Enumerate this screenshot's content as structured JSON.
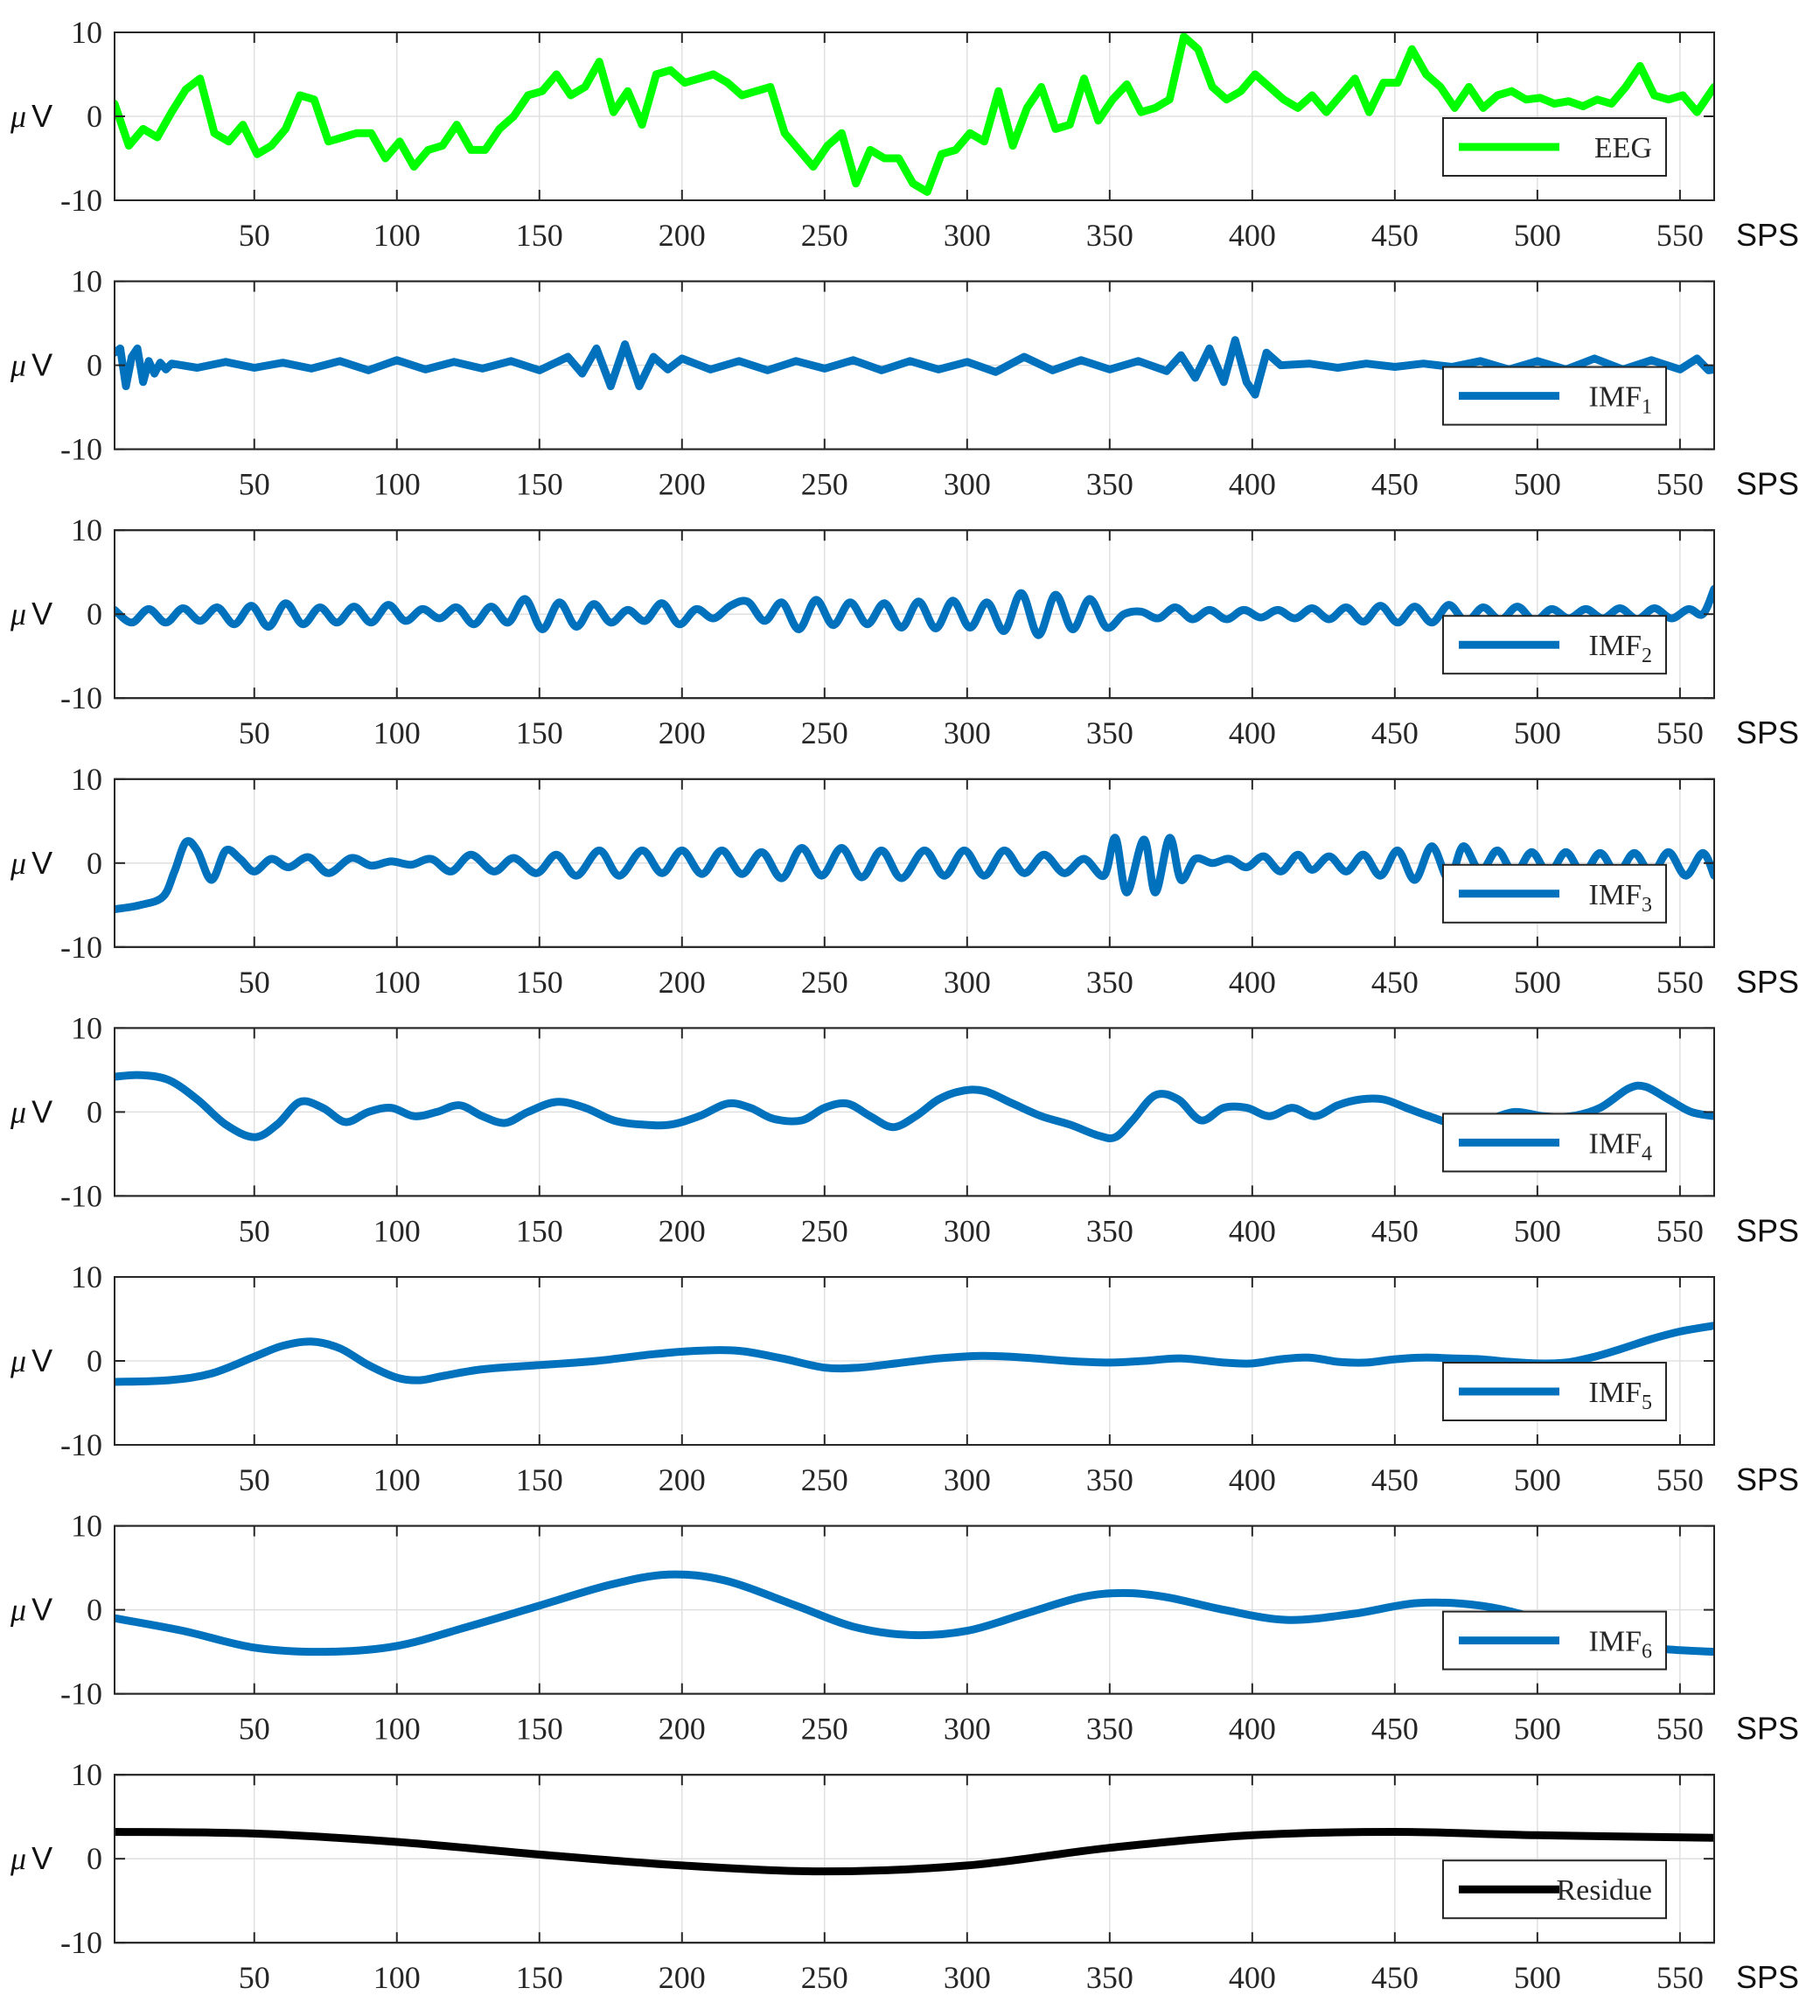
{
  "x_unit": "SPS",
  "y_unit_symbol": "μ",
  "y_unit_letter": "V",
  "x_ticks": [
    50,
    100,
    150,
    200,
    250,
    300,
    350,
    400,
    450,
    500,
    550
  ],
  "y_ticks": [
    10,
    0,
    -10
  ],
  "colors": {
    "eeg": "#00ff00",
    "imf": "#0072bd",
    "residue": "#000000"
  },
  "chart_data": [
    {
      "type": "line",
      "series_name": "EEG",
      "legend": "EEG",
      "subscript": "",
      "color": "#00ff00",
      "xlim": [
        1,
        562
      ],
      "ylim": [
        -10,
        10
      ],
      "xlabel": "SPS",
      "ylabel": "μV",
      "x": [
        1,
        6,
        11,
        16,
        21,
        26,
        31,
        36,
        41,
        46,
        51,
        56,
        61,
        66,
        71,
        76,
        81,
        86,
        91,
        96,
        101,
        106,
        111,
        116,
        121,
        126,
        131,
        136,
        141,
        146,
        151,
        156,
        161,
        166,
        171,
        176,
        181,
        186,
        191,
        196,
        201,
        206,
        211,
        216,
        221,
        226,
        231,
        236,
        241,
        246,
        251,
        256,
        261,
        266,
        271,
        276,
        281,
        286,
        291,
        296,
        301,
        306,
        311,
        316,
        321,
        326,
        331,
        336,
        341,
        346,
        351,
        356,
        361,
        366,
        371,
        376,
        381,
        386,
        391,
        396,
        401,
        406,
        411,
        416,
        421,
        426,
        431,
        436,
        441,
        446,
        451,
        456,
        461,
        466,
        471,
        476,
        481,
        486,
        491,
        496,
        501,
        506,
        511,
        516,
        521,
        526,
        531,
        536,
        541,
        546,
        551,
        556,
        562
      ],
      "values": [
        1.5,
        -3.5,
        -1.5,
        -2.5,
        0.5,
        3.2,
        4.5,
        -2,
        -3,
        -1,
        -4.5,
        -3.5,
        -1.5,
        2.5,
        2,
        -3,
        -2.5,
        -2,
        -2,
        -5,
        -3,
        -6,
        -4,
        -3.5,
        -1,
        -4,
        -4,
        -1.5,
        0,
        2.5,
        3,
        5,
        2.5,
        3.5,
        6.5,
        0.5,
        3,
        -1,
        5,
        5.5,
        4,
        4.5,
        5,
        4,
        2.5,
        3,
        3.5,
        -2,
        -4,
        -6,
        -3.5,
        -2,
        -8,
        -4,
        -5,
        -5,
        -8,
        -9,
        -4.5,
        -4,
        -2,
        -3,
        3,
        -3.5,
        1,
        3.5,
        -1.5,
        -1,
        4.5,
        -0.5,
        2,
        3.8,
        0.5,
        1,
        2,
        9.5,
        8,
        3.5,
        2,
        3,
        5,
        3.5,
        2,
        1,
        2.5,
        0.5,
        2.5,
        4.5,
        0.5,
        4,
        4,
        8,
        5,
        3.5,
        1,
        3.5,
        1,
        2.5,
        3,
        2,
        2.2,
        1.5,
        1.8,
        1.2,
        2,
        1.5,
        3.5,
        6,
        2.5,
        2,
        2.5,
        0.5,
        3.5
      ]
    },
    {
      "type": "line",
      "series_name": "IMF1",
      "legend": "IMF",
      "subscript": "1",
      "color": "#0072bd",
      "xlim": [
        1,
        562
      ],
      "ylim": [
        -10,
        10
      ],
      "xlabel": "SPS",
      "ylabel": "μV",
      "x": [
        1,
        3,
        5,
        7,
        9,
        11,
        13,
        15,
        17,
        19,
        21,
        30,
        40,
        50,
        60,
        70,
        80,
        90,
        100,
        110,
        120,
        130,
        140,
        150,
        160,
        165,
        170,
        175,
        180,
        185,
        190,
        195,
        200,
        210,
        220,
        230,
        240,
        250,
        260,
        270,
        280,
        290,
        300,
        310,
        320,
        330,
        340,
        350,
        360,
        370,
        375,
        380,
        385,
        390,
        394,
        398,
        401,
        405,
        410,
        420,
        430,
        440,
        450,
        460,
        470,
        480,
        490,
        500,
        510,
        520,
        530,
        540,
        550,
        556,
        560,
        562
      ],
      "values": [
        1.5,
        2,
        -2.5,
        1,
        2,
        -2,
        0.5,
        -1,
        0.3,
        -0.5,
        0.2,
        -0.3,
        0.4,
        -0.3,
        0.3,
        -0.4,
        0.5,
        -0.6,
        0.6,
        -0.5,
        0.4,
        -0.4,
        0.5,
        -0.6,
        1,
        -1,
        2,
        -2.5,
        2.5,
        -2.5,
        1,
        -0.5,
        0.8,
        -0.5,
        0.5,
        -0.6,
        0.5,
        -0.4,
        0.6,
        -0.6,
        0.5,
        -0.5,
        0.4,
        -0.8,
        1,
        -0.6,
        0.6,
        -0.5,
        0.5,
        -0.7,
        1.2,
        -1.5,
        2,
        -2,
        3,
        -2,
        -3.5,
        1.5,
        0,
        0.2,
        -0.3,
        0.2,
        -0.2,
        0.2,
        -0.2,
        0.5,
        -0.5,
        0.5,
        -0.5,
        0.8,
        -0.5,
        0.6,
        -0.5,
        0.8,
        -0.6,
        -0.5
      ]
    },
    {
      "type": "line",
      "series_name": "IMF2",
      "legend": "IMF",
      "subscript": "2",
      "color": "#0072bd",
      "xlim": [
        1,
        562
      ],
      "ylim": [
        -10,
        10
      ],
      "xlabel": "SPS",
      "ylabel": "μV",
      "x": [
        1,
        7,
        13,
        19,
        25,
        31,
        37,
        43,
        49,
        55,
        61,
        67,
        73,
        79,
        85,
        91,
        97,
        103,
        109,
        115,
        121,
        127,
        133,
        139,
        145,
        151,
        157,
        163,
        169,
        175,
        181,
        187,
        193,
        199,
        205,
        211,
        217,
        223,
        229,
        235,
        241,
        247,
        253,
        259,
        265,
        271,
        277,
        283,
        289,
        295,
        301,
        307,
        313,
        319,
        325,
        331,
        337,
        343,
        349,
        355,
        361,
        367,
        373,
        379,
        385,
        391,
        397,
        403,
        409,
        415,
        421,
        427,
        433,
        439,
        445,
        451,
        457,
        463,
        469,
        475,
        481,
        487,
        493,
        499,
        505,
        511,
        517,
        523,
        529,
        535,
        541,
        547,
        553,
        558,
        562
      ],
      "values": [
        0.5,
        -1,
        0.6,
        -1,
        0.7,
        -0.8,
        0.8,
        -1.2,
        1,
        -1.5,
        1.3,
        -1.2,
        0.8,
        -1,
        0.9,
        -1,
        1.1,
        -0.8,
        0.6,
        -0.5,
        0.8,
        -1.2,
        0.9,
        -1,
        1.8,
        -1.8,
        1.4,
        -1.5,
        1.2,
        -1,
        0.5,
        -0.8,
        1.3,
        -1.2,
        0.6,
        -0.5,
        1,
        1.5,
        -0.8,
        1.4,
        -1.8,
        1.7,
        -1.3,
        1.4,
        -1.2,
        1.3,
        -1.6,
        1.5,
        -1.7,
        1.6,
        -1.6,
        1.4,
        -2,
        2.5,
        -2.5,
        2.3,
        -1.8,
        1.8,
        -1.6,
        0,
        0.3,
        -0.5,
        0.8,
        -0.6,
        0.5,
        -0.6,
        0.5,
        -0.4,
        0.5,
        -0.5,
        0.7,
        -0.6,
        0.8,
        -0.9,
        1,
        -1,
        0.9,
        -1,
        1.1,
        -0.9,
        0.8,
        -0.7,
        0.9,
        -0.8,
        0.6,
        -0.5,
        0.6,
        -0.5,
        0.7,
        -0.6,
        0.7,
        -0.5,
        0.6,
        0,
        3
      ]
    },
    {
      "type": "line",
      "series_name": "IMF3",
      "legend": "IMF",
      "subscript": "3",
      "color": "#0072bd",
      "xlim": [
        1,
        562
      ],
      "ylim": [
        -10,
        10
      ],
      "xlabel": "SPS",
      "ylabel": "μV",
      "x": [
        1,
        10,
        18,
        22,
        26,
        30,
        35,
        40,
        45,
        50,
        56,
        62,
        69,
        76,
        84,
        91,
        98,
        105,
        112,
        119,
        126,
        134,
        141,
        149,
        156,
        163,
        171,
        178,
        186,
        193,
        200,
        207,
        214,
        221,
        228,
        235,
        242,
        249,
        256,
        263,
        270,
        277,
        285,
        292,
        299,
        306,
        313,
        320,
        327,
        334,
        341,
        348,
        352,
        356,
        362,
        366,
        371,
        375,
        380,
        386,
        392,
        398,
        404,
        410,
        416,
        421,
        427,
        433,
        439,
        445,
        451,
        457,
        463,
        469,
        474,
        480,
        486,
        492,
        498,
        504,
        510,
        516,
        522,
        528,
        534,
        540,
        546,
        552,
        558,
        562
      ],
      "values": [
        -5.5,
        -5,
        -4,
        -1,
        2.5,
        1.5,
        -2,
        1.5,
        0.5,
        -1,
        0.5,
        -0.5,
        0.7,
        -1.2,
        0.6,
        -0.3,
        0.2,
        -0.2,
        0.5,
        -1,
        1,
        -1,
        0.6,
        -1.2,
        1,
        -1.5,
        1.5,
        -1.5,
        1.5,
        -1.2,
        1.5,
        -1.3,
        1.5,
        -1.3,
        1.3,
        -1.8,
        1.8,
        -1.5,
        1.8,
        -1.7,
        1.5,
        -1.8,
        1.5,
        -1.5,
        1.5,
        -1.5,
        1.5,
        -1.2,
        1,
        -1.2,
        0.5,
        -1.5,
        3,
        -3.5,
        2.8,
        -3.5,
        3,
        -2,
        0.5,
        0,
        0.5,
        -0.5,
        0.8,
        -1,
        1,
        -0.8,
        0.8,
        -1,
        1,
        -1.5,
        1.5,
        -2,
        2,
        -2,
        2,
        -1,
        1.5,
        -1.3,
        1.3,
        -1.3,
        1.3,
        -1.3,
        1.2,
        -1.3,
        1.2,
        -1.3,
        1.3,
        -1.5,
        1.2,
        -1.5
      ]
    },
    {
      "type": "line",
      "series_name": "IMF4",
      "legend": "IMF",
      "subscript": "4",
      "color": "#0072bd",
      "xlim": [
        1,
        562
      ],
      "ylim": [
        -10,
        10
      ],
      "xlabel": "SPS",
      "ylabel": "μV",
      "x": [
        1,
        10,
        20,
        30,
        40,
        50,
        58,
        66,
        74,
        82,
        90,
        98,
        106,
        114,
        122,
        130,
        138,
        146,
        156,
        166,
        176,
        186,
        196,
        206,
        216,
        224,
        232,
        242,
        250,
        258,
        266,
        274,
        282,
        290,
        298,
        306,
        316,
        326,
        336,
        346,
        352,
        358,
        366,
        374,
        382,
        390,
        398,
        406,
        414,
        422,
        430,
        438,
        446,
        454,
        462,
        472,
        482,
        492,
        502,
        512,
        522,
        532,
        538,
        546,
        554,
        562
      ],
      "values": [
        4.2,
        4.4,
        3.8,
        1.5,
        -1.5,
        -3,
        -1.5,
        1.2,
        0.5,
        -1.2,
        0,
        0.5,
        -0.5,
        0,
        0.8,
        -0.5,
        -1.3,
        0,
        1.2,
        0.5,
        -1,
        -1.5,
        -1.5,
        -0.5,
        1,
        0.5,
        -0.8,
        -1,
        0.5,
        1,
        -0.5,
        -1.8,
        -0.5,
        1.5,
        2.5,
        2.5,
        1,
        -0.5,
        -1.5,
        -2.8,
        -3,
        -1,
        2,
        1.5,
        -1,
        0.5,
        0.5,
        -0.5,
        0.5,
        -0.5,
        0.8,
        1.5,
        1.5,
        0.5,
        -0.5,
        -1.5,
        -1,
        0,
        -0.5,
        -0.5,
        0.5,
        2.8,
        3,
        1.5,
        0,
        -0.5
      ]
    },
    {
      "type": "line",
      "series_name": "IMF5",
      "legend": "IMF",
      "subscript": "5",
      "color": "#0072bd",
      "xlim": [
        1,
        562
      ],
      "ylim": [
        -10,
        10
      ],
      "xlabel": "SPS",
      "ylabel": "μV",
      "x": [
        1,
        20,
        35,
        50,
        60,
        70,
        80,
        90,
        100,
        108,
        116,
        130,
        150,
        170,
        190,
        205,
        220,
        235,
        250,
        262,
        275,
        290,
        305,
        320,
        335,
        350,
        362,
        375,
        390,
        400,
        410,
        420,
        430,
        440,
        450,
        460,
        470,
        480,
        490,
        500,
        510,
        520,
        530,
        540,
        550,
        562
      ],
      "values": [
        -2.5,
        -2.3,
        -1.5,
        0.5,
        1.8,
        2.3,
        1.5,
        -0.5,
        -2,
        -2.3,
        -1.8,
        -1,
        -0.5,
        0,
        0.8,
        1.2,
        1.2,
        0.3,
        -0.8,
        -0.8,
        -0.3,
        0.3,
        0.6,
        0.4,
        0,
        -0.2,
        0,
        0.3,
        -0.2,
        -0.3,
        0.2,
        0.4,
        -0.1,
        -0.2,
        0.2,
        0.4,
        0.3,
        0.2,
        -0.1,
        -0.3,
        -0.2,
        0.5,
        1.5,
        2.6,
        3.5,
        4.2
      ]
    },
    {
      "type": "line",
      "series_name": "IMF6",
      "legend": "IMF",
      "subscript": "6",
      "color": "#0072bd",
      "xlim": [
        1,
        562
      ],
      "ylim": [
        -10,
        10
      ],
      "xlabel": "SPS",
      "ylabel": "μV",
      "x": [
        1,
        25,
        50,
        75,
        100,
        125,
        150,
        175,
        195,
        215,
        240,
        260,
        280,
        300,
        320,
        340,
        355,
        370,
        390,
        412,
        435,
        458,
        480,
        500,
        520,
        540,
        562
      ],
      "values": [
        -1,
        -2.5,
        -4.5,
        -5,
        -4.3,
        -2,
        0.5,
        3,
        4.2,
        3.5,
        0.5,
        -2,
        -3,
        -2.5,
        -0.5,
        1.5,
        2,
        1.5,
        0,
        -1.2,
        -0.5,
        0.8,
        0.5,
        -1,
        -2.8,
        -4.5,
        -5
      ]
    },
    {
      "type": "line",
      "series_name": "Residue",
      "legend": "Residue",
      "subscript": "",
      "color": "#000000",
      "xlim": [
        1,
        562
      ],
      "ylim": [
        -10,
        10
      ],
      "xlabel": "SPS",
      "ylabel": "μV",
      "x": [
        1,
        50,
        100,
        150,
        200,
        250,
        300,
        350,
        400,
        450,
        500,
        562
      ],
      "values": [
        3.2,
        3,
        2,
        0.5,
        -0.8,
        -1.5,
        -0.8,
        1.3,
        2.8,
        3.2,
        2.8,
        2.5
      ]
    }
  ]
}
